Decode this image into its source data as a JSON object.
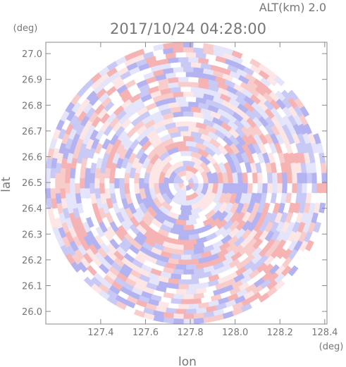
{
  "chart_data": {
    "type": "radar-ppi",
    "title": "2017/10/24 04:28:00",
    "subtitle": "ALT(km) 2.0",
    "x_label": "lon",
    "x_unit": "(deg)",
    "y_label": "lat",
    "y_unit": "(deg)",
    "xlim": [
      127.155,
      128.41
    ],
    "ylim": [
      25.951,
      27.044
    ],
    "xticks": [
      127.4,
      127.6,
      127.8,
      {
        "value": 128.0,
        "label": "128.0"
      },
      128.2,
      128.4
    ],
    "yticks": [
      {
        "value": 26.0,
        "label": "26.0"
      },
      26.1,
      26.2,
      26.3,
      26.4,
      26.5,
      26.6,
      26.7,
      26.8,
      26.9,
      {
        "value": 27.0,
        "label": "27.0"
      }
    ]
  }
}
